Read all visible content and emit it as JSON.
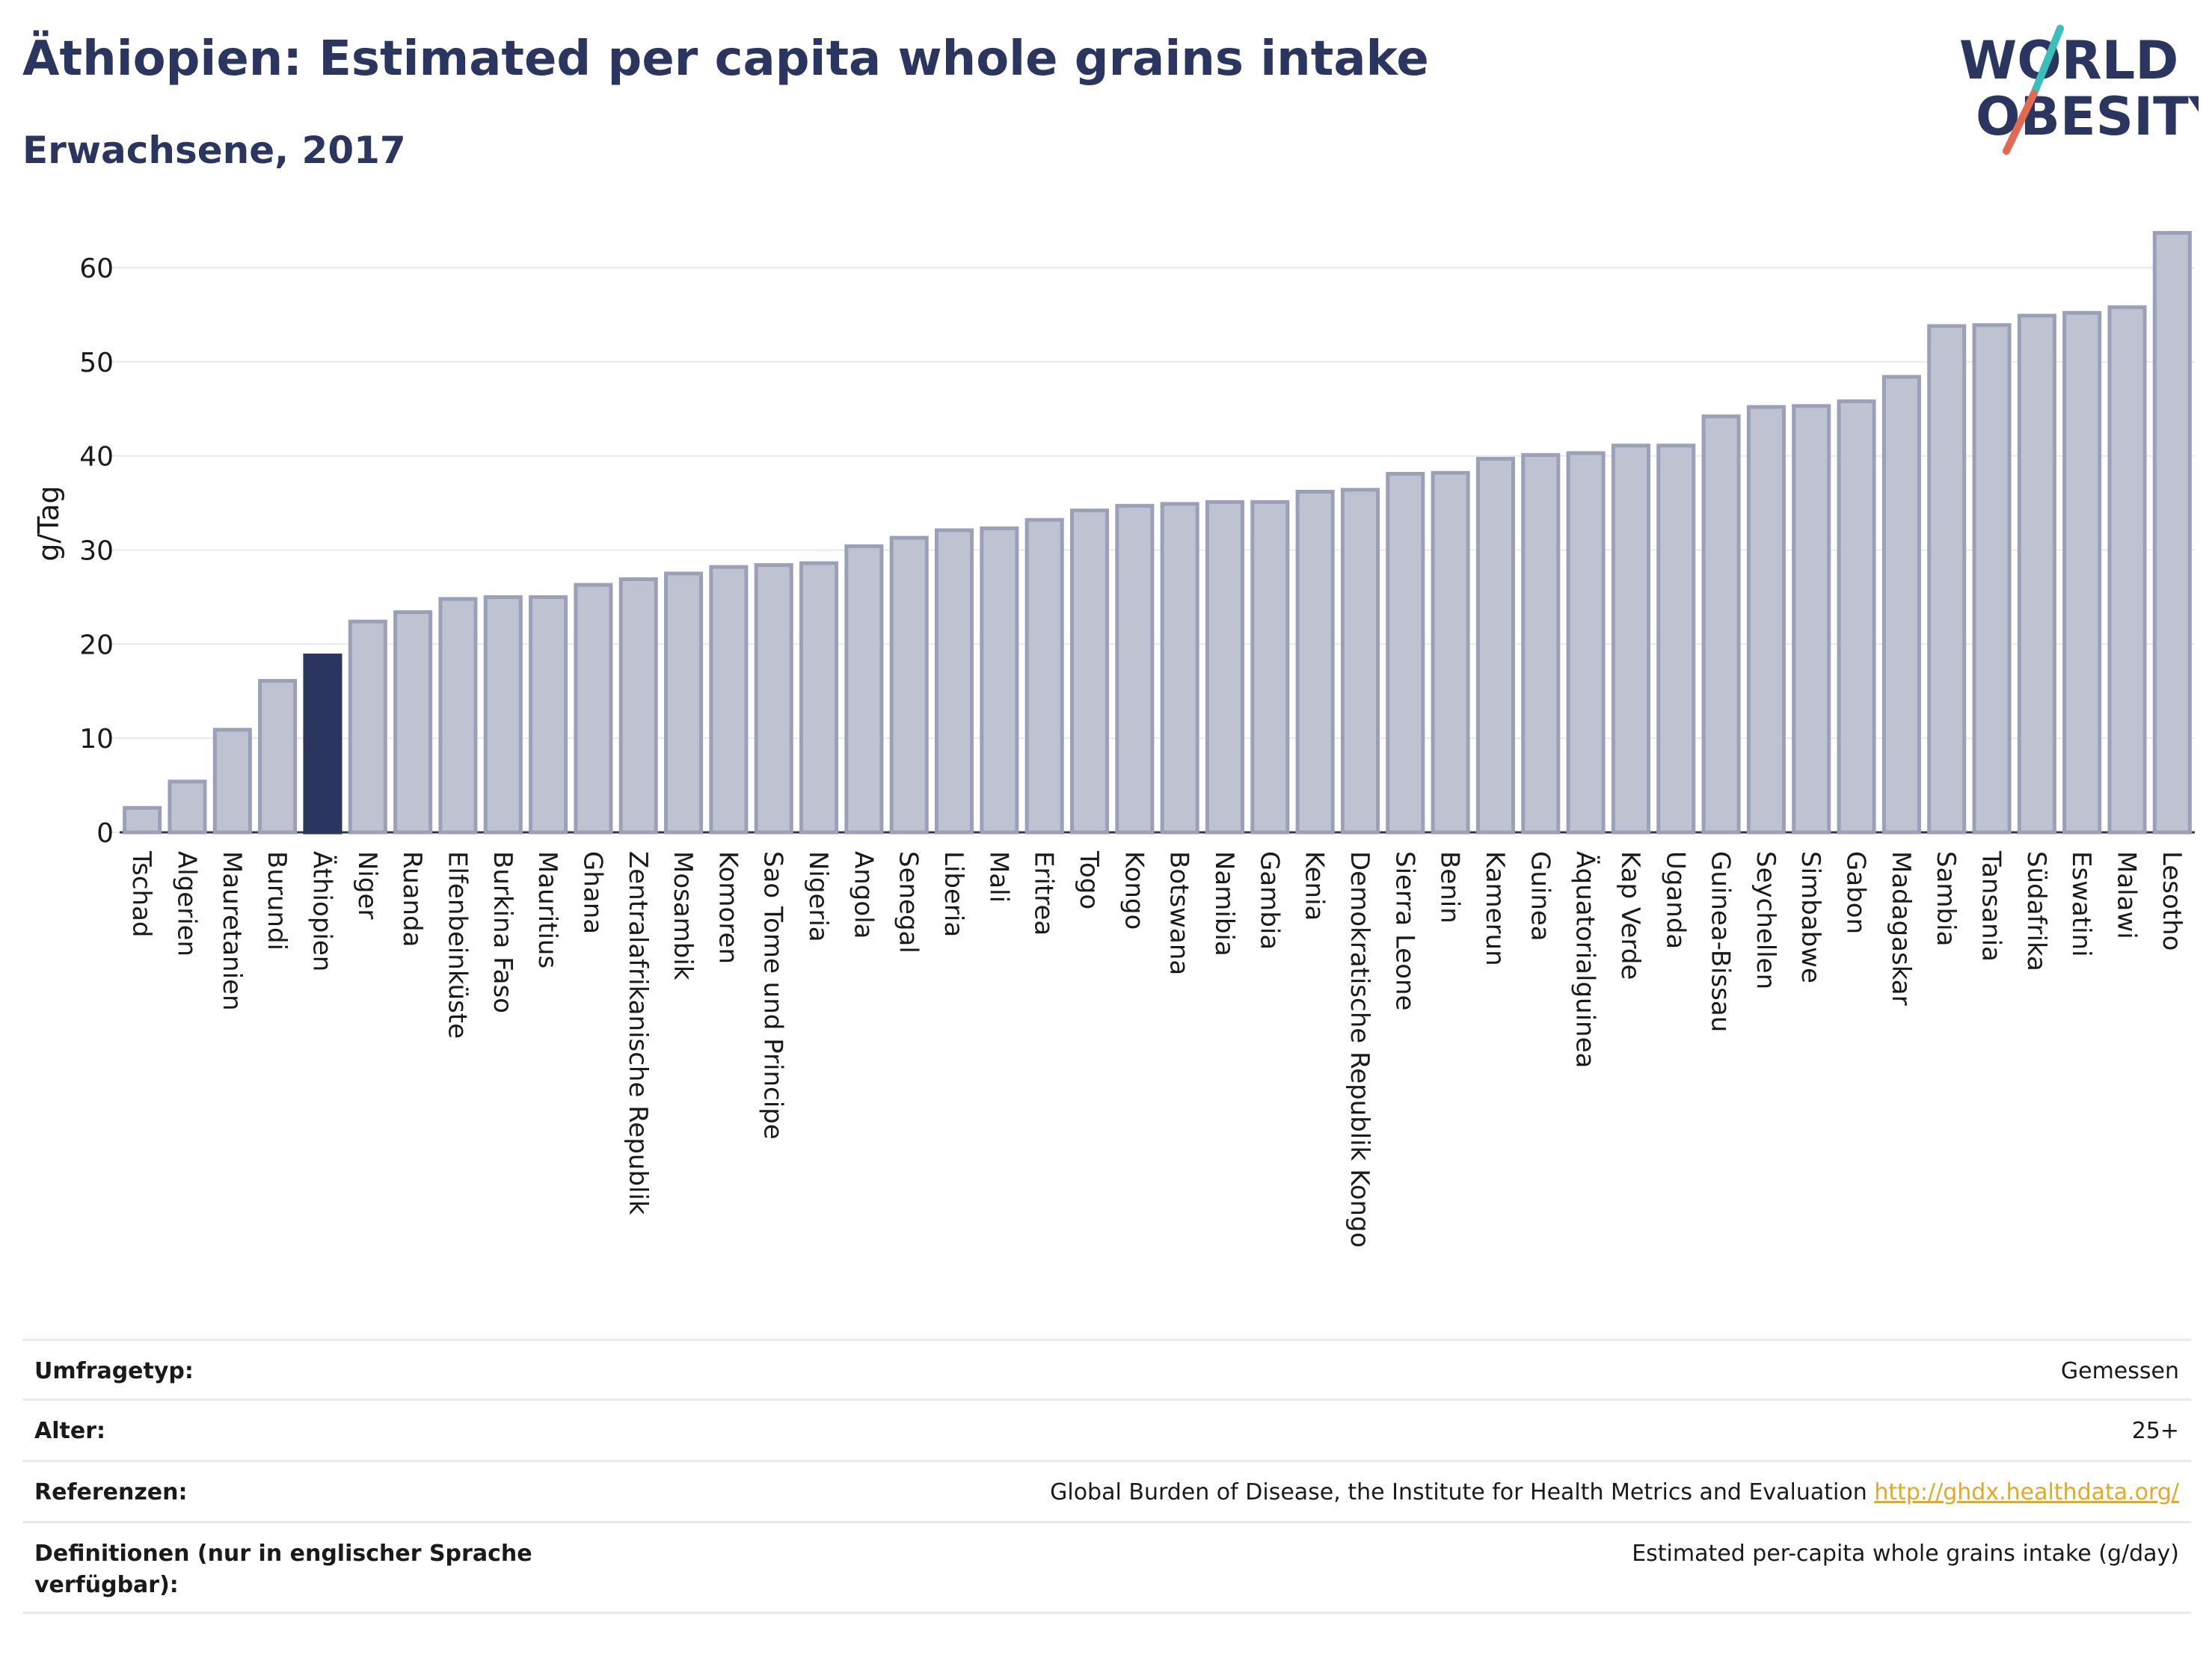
{
  "header": {
    "title": "Äthiopien: Estimated per capita whole grains intake",
    "subtitle": "Erwachsene, 2017"
  },
  "logo": {
    "line1": "WORLD",
    "line2": "OBESITY",
    "colors": {
      "text": "#2a3560",
      "slash_top": "#3bbfbd",
      "slash_bottom": "#e36a52"
    }
  },
  "colors": {
    "bar": "#bfc3d1",
    "bar_border": "#9aa0b7",
    "highlight": "#2a3560",
    "grid": "#e6e9ee",
    "axis_text": "#1a1a1a",
    "link": "#e5a823"
  },
  "chart_data": {
    "type": "bar",
    "ylabel": "g/Tag",
    "ylim": [
      0,
      65
    ],
    "yticks": [
      0,
      10,
      20,
      30,
      40,
      50,
      60
    ],
    "grid": true,
    "highlight": "Äthiopien",
    "categories": [
      "Tschad",
      "Algerien",
      "Mauretanien",
      "Burundi",
      "Äthiopien",
      "Niger",
      "Ruanda",
      "Elfenbeinküste",
      "Burkina Faso",
      "Mauritius",
      "Ghana",
      "Zentralafrikanische Republik",
      "Mosambik",
      "Komoren",
      "Sao Tome und Principe",
      "Nigeria",
      "Angola",
      "Senegal",
      "Liberia",
      "Mali",
      "Eritrea",
      "Togo",
      "Kongo",
      "Botswana",
      "Namibia",
      "Gambia",
      "Kenia",
      "Demokratische Republik Kongo",
      "Sierra Leone",
      "Benin",
      "Kamerun",
      "Guinea",
      "Äquatorialguinea",
      "Kap Verde",
      "Uganda",
      "Guinea-Bissau",
      "Seychellen",
      "Simbabwe",
      "Gabon",
      "Madagaskar",
      "Sambia",
      "Tansania",
      "Südafrika",
      "Eswatini",
      "Malawi",
      "Lesotho"
    ],
    "values": [
      2.6,
      5.4,
      10.9,
      16.1,
      18.8,
      22.4,
      23.4,
      24.8,
      25.0,
      25.0,
      26.3,
      26.9,
      27.5,
      28.2,
      28.4,
      28.6,
      30.4,
      31.3,
      32.1,
      32.3,
      33.2,
      34.2,
      34.7,
      34.9,
      35.1,
      35.1,
      36.2,
      36.4,
      38.1,
      38.2,
      39.7,
      40.1,
      40.3,
      41.1,
      41.1,
      44.2,
      45.2,
      45.3,
      45.8,
      48.4,
      53.8,
      53.9,
      54.9,
      55.2,
      55.8,
      63.7
    ]
  },
  "info": {
    "rows": [
      {
        "label": "Umfragetyp:",
        "value": "Gemessen"
      },
      {
        "label": "Alter:",
        "value": "25+"
      },
      {
        "label": "Referenzen:",
        "value": "Global Burden of Disease, the Institute for Health Metrics and Evaluation",
        "link": "http://ghdx.healthdata.org/"
      },
      {
        "label": "Definitionen (nur in englischer Sprache verfügbar):",
        "value": "Estimated per-capita whole grains intake (g/day)"
      }
    ]
  }
}
